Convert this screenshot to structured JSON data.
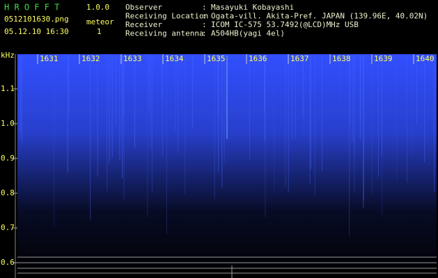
{
  "header": {
    "app_name": "H R O F F T",
    "version": "1.0.0",
    "filename": "0512101630.png",
    "meteor_label": "meteor",
    "datetime": "05.12.10 16:30",
    "meteor_count": "1"
  },
  "info": {
    "separator": ":",
    "rows": [
      {
        "label": "Observer",
        "value": "Masayuki Kobayashi"
      },
      {
        "label": "Receiving Location",
        "value": "Ogata-vill. Akita-Pref. JAPAN (139.96E, 40.02N)"
      },
      {
        "label": "Receiver",
        "value": "ICOM IC-575 53.7492(@LCD)MHz USB"
      },
      {
        "label": "Receiving antenna",
        "value": "A504HB(yagi 4el)"
      }
    ]
  },
  "axis": {
    "unit": "kHz",
    "frequency_ticks": [
      "1.1",
      "1.0",
      "0.9",
      "0.8",
      "0.7",
      "0.6"
    ],
    "minute_ticks": [
      "1631",
      "1632",
      "1633",
      "1634",
      "1635",
      "1636",
      "1637",
      "1638",
      "1639",
      "1640"
    ]
  }
}
